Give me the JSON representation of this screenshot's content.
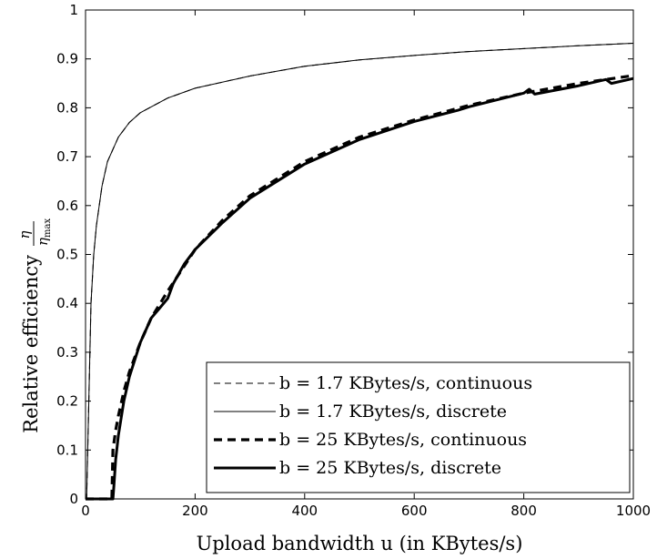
{
  "chart_data": {
    "type": "line",
    "title": "",
    "xlabel": "Upload bandwidth u (in KBytes/s)",
    "ylabel": "Relative efficiency η/η_max",
    "ylabel_text": "Relative efficiency",
    "ylabel_frac_num": "η",
    "ylabel_frac_den": "η",
    "ylabel_frac_den_sub": "max",
    "xlim": [
      0,
      1000
    ],
    "ylim": [
      0,
      1
    ],
    "xticks": [
      0,
      200,
      400,
      600,
      800,
      1000
    ],
    "yticks": [
      0,
      0.1,
      0.2,
      0.3,
      0.4,
      0.5,
      0.6,
      0.7,
      0.8,
      0.9,
      1
    ],
    "xtick_labels": [
      "0",
      "200",
      "400",
      "600",
      "800",
      "1000"
    ],
    "ytick_labels": [
      "0",
      "0.1",
      "0.2",
      "0.3",
      "0.4",
      "0.5",
      "0.6",
      "0.7",
      "0.8",
      "0.9",
      "1"
    ],
    "grid": false,
    "legend_position": "bottom-right",
    "series": [
      {
        "name": "b = 1.7 KBytes/s, continuous",
        "legend_label": "b = 1.7 KBytes/s, continuous",
        "style": "thin-dashed",
        "x": [
          0,
          2,
          4,
          6,
          8,
          10,
          15,
          20,
          30,
          40,
          60,
          80,
          100,
          150,
          200,
          300,
          400,
          500,
          600,
          700,
          800,
          900,
          1000
        ],
        "y": [
          0,
          0,
          0.1,
          0.2,
          0.3,
          0.4,
          0.5,
          0.56,
          0.64,
          0.69,
          0.74,
          0.77,
          0.79,
          0.82,
          0.84,
          0.865,
          0.885,
          0.898,
          0.907,
          0.915,
          0.921,
          0.927,
          0.932
        ]
      },
      {
        "name": "b = 1.7 KBytes/s, discrete",
        "legend_label": "b = 1.7 KBytes/s, discrete",
        "style": "thin-solid",
        "x": [
          0,
          2,
          4,
          6,
          8,
          10,
          15,
          20,
          30,
          40,
          60,
          80,
          100,
          150,
          200,
          300,
          400,
          500,
          600,
          700,
          800,
          900,
          1000
        ],
        "y": [
          0,
          0,
          0.1,
          0.2,
          0.3,
          0.4,
          0.5,
          0.56,
          0.64,
          0.69,
          0.74,
          0.77,
          0.79,
          0.82,
          0.84,
          0.865,
          0.885,
          0.898,
          0.907,
          0.915,
          0.921,
          0.927,
          0.932
        ]
      },
      {
        "name": "b = 25 KBytes/s, continuous",
        "legend_label": "b = 25 KBytes/s, continuous",
        "style": "thick-dashed",
        "x": [
          0,
          48,
          50,
          55,
          60,
          70,
          80,
          100,
          120,
          150,
          200,
          250,
          300,
          400,
          500,
          600,
          700,
          800,
          900,
          1000
        ],
        "y": [
          0,
          0,
          0.1,
          0.14,
          0.17,
          0.22,
          0.26,
          0.32,
          0.37,
          0.425,
          0.51,
          0.57,
          0.62,
          0.69,
          0.74,
          0.775,
          0.805,
          0.83,
          0.85,
          0.866
        ]
      },
      {
        "name": "b = 25 KBytes/s, discrete",
        "legend_label": "b = 25 KBytes/s, discrete",
        "style": "thick-solid",
        "x": [
          0,
          50,
          52,
          55,
          60,
          70,
          80,
          100,
          120,
          135,
          150,
          160,
          180,
          200,
          250,
          300,
          400,
          500,
          600,
          680,
          700,
          800,
          810,
          820,
          900,
          950,
          960,
          1000
        ],
        "y": [
          0,
          0,
          0.03,
          0.08,
          0.13,
          0.2,
          0.25,
          0.32,
          0.37,
          0.39,
          0.41,
          0.44,
          0.48,
          0.51,
          0.565,
          0.615,
          0.685,
          0.735,
          0.772,
          0.795,
          0.802,
          0.83,
          0.838,
          0.828,
          0.845,
          0.858,
          0.85,
          0.86
        ]
      }
    ]
  }
}
